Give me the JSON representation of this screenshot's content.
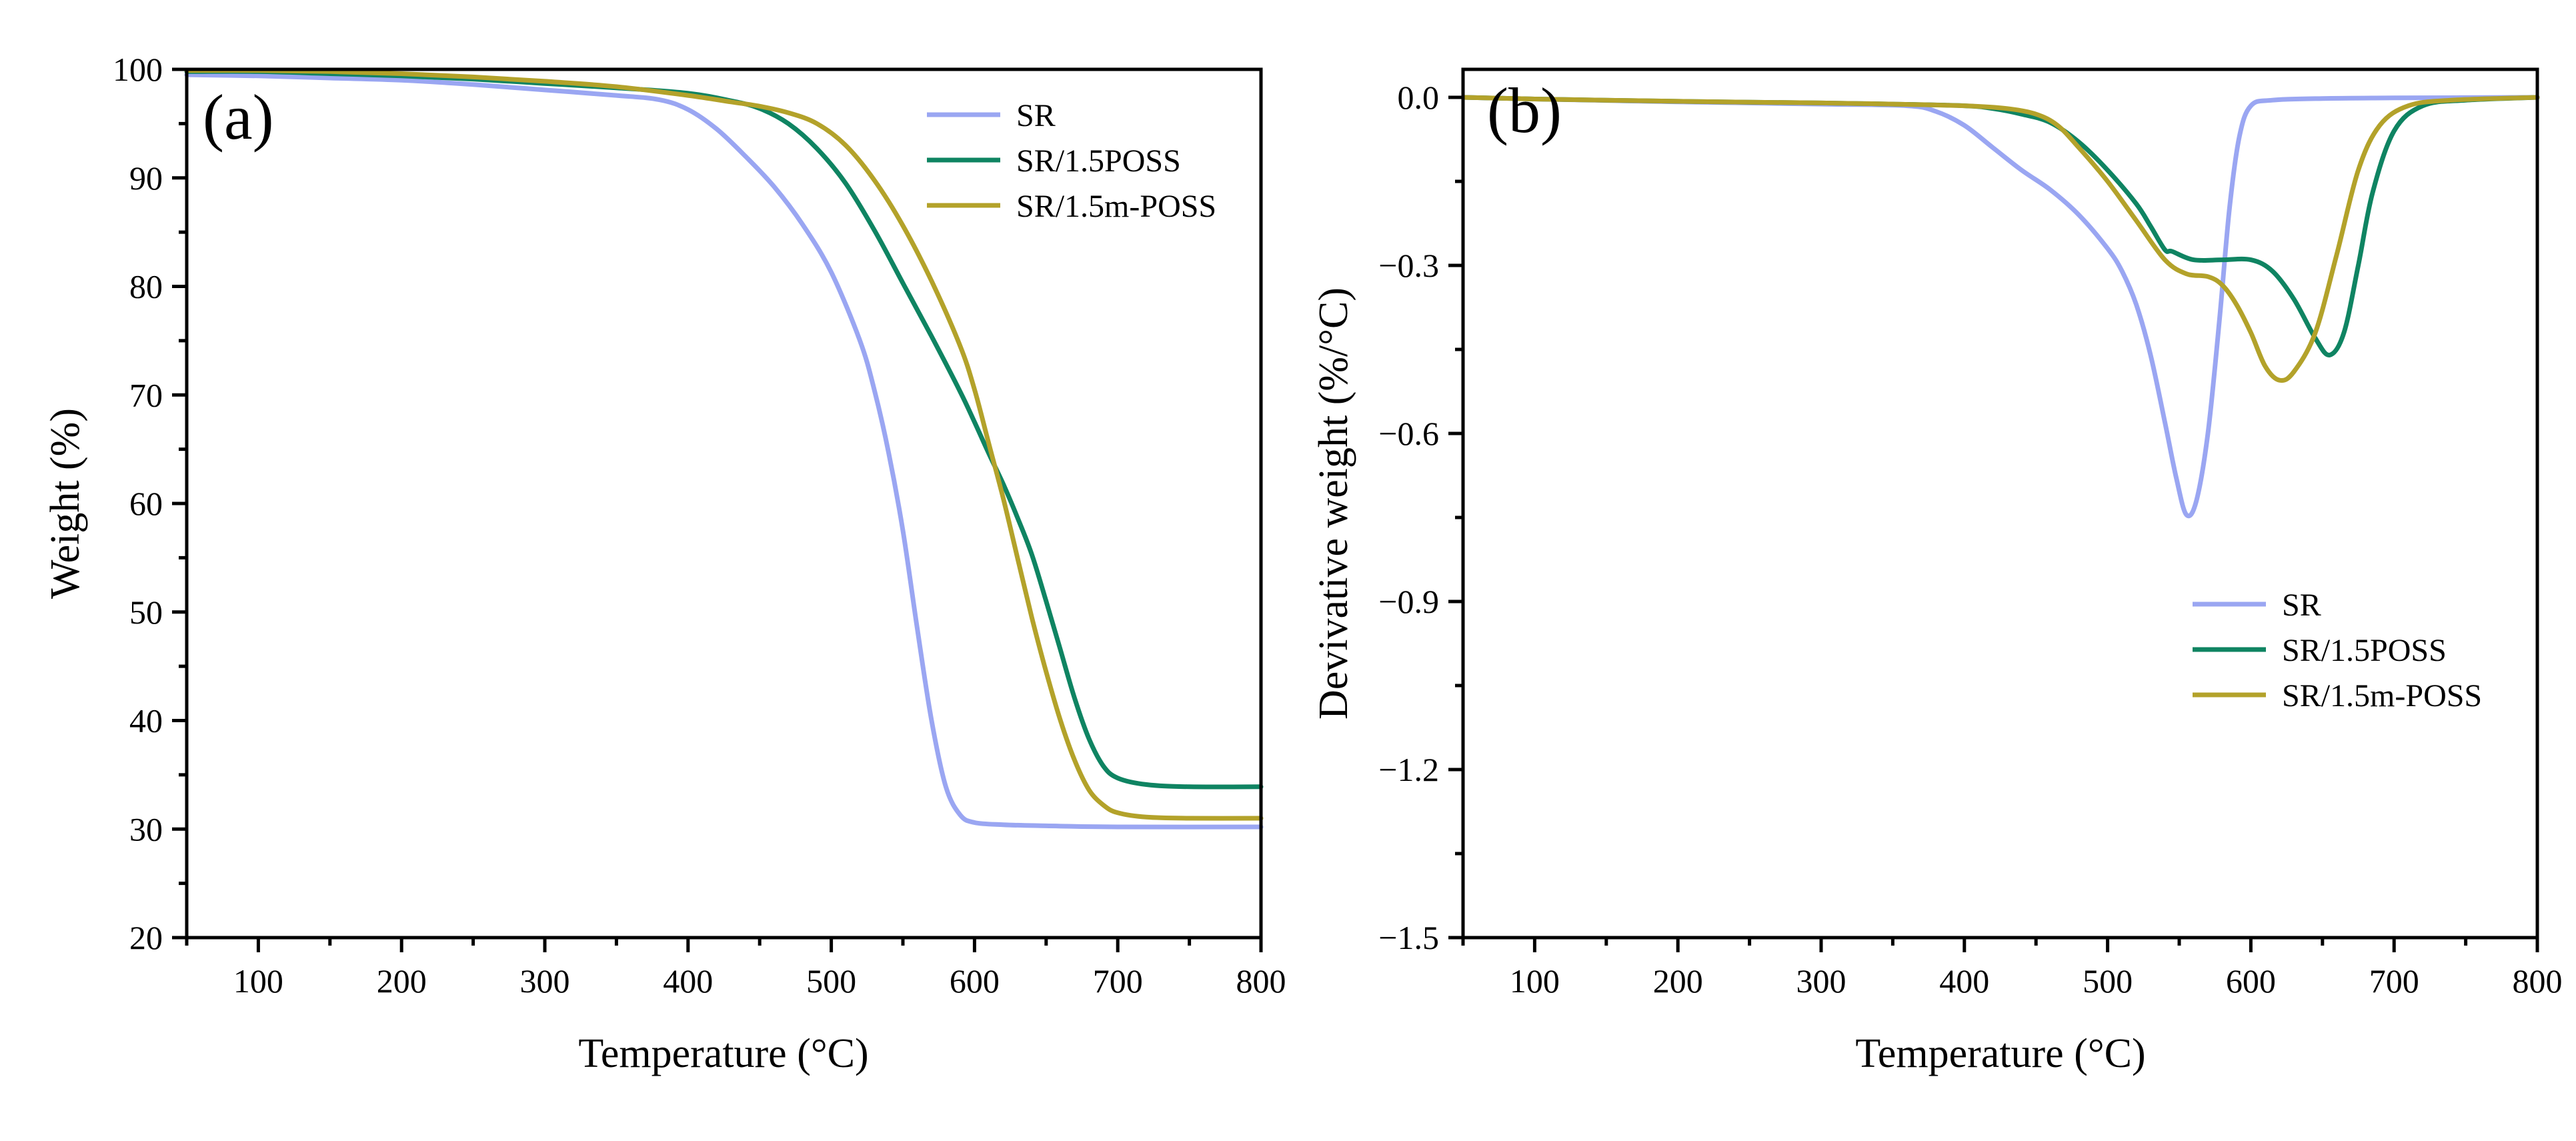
{
  "chart_data": [
    {
      "type": "line",
      "panel_label": "(a)",
      "title": "",
      "xlabel": "Temperature (°C)",
      "ylabel": "Weight (%)",
      "xlim": [
        50,
        800
      ],
      "ylim": [
        20,
        100
      ],
      "x_ticks": [
        100,
        200,
        300,
        400,
        500,
        600,
        700,
        800
      ],
      "y_ticks": [
        20,
        30,
        40,
        50,
        60,
        70,
        80,
        90,
        100
      ],
      "grid": false,
      "legend_position": "top-right",
      "series": [
        {
          "name": "SR",
          "color": "#9aa6f2",
          "points": [
            [
              50,
              99.5
            ],
            [
              100,
              99.4
            ],
            [
              150,
              99.2
            ],
            [
              200,
              99.0
            ],
            [
              250,
              98.6
            ],
            [
              300,
              98.1
            ],
            [
              350,
              97.6
            ],
            [
              380,
              97.2
            ],
            [
              400,
              96.3
            ],
            [
              420,
              94.5
            ],
            [
              440,
              92.0
            ],
            [
              460,
              89.2
            ],
            [
              480,
              85.7
            ],
            [
              500,
              81.3
            ],
            [
              520,
              75.0
            ],
            [
              530,
              70.5
            ],
            [
              540,
              64.7
            ],
            [
              550,
              57.5
            ],
            [
              560,
              48.5
            ],
            [
              570,
              40.0
            ],
            [
              580,
              33.9
            ],
            [
              590,
              31.3
            ],
            [
              600,
              30.6
            ],
            [
              620,
              30.4
            ],
            [
              650,
              30.3
            ],
            [
              700,
              30.2
            ],
            [
              800,
              30.2
            ]
          ]
        },
        {
          "name": "SR/1.5POSS",
          "color": "#0f8462",
          "points": [
            [
              50,
              99.8
            ],
            [
              100,
              99.8
            ],
            [
              150,
              99.6
            ],
            [
              200,
              99.4
            ],
            [
              250,
              99.1
            ],
            [
              300,
              98.7
            ],
            [
              350,
              98.3
            ],
            [
              400,
              97.8
            ],
            [
              430,
              97.1
            ],
            [
              450,
              96.4
            ],
            [
              470,
              95.0
            ],
            [
              490,
              92.7
            ],
            [
              510,
              89.5
            ],
            [
              530,
              85.2
            ],
            [
              550,
              80.3
            ],
            [
              570,
              75.4
            ],
            [
              590,
              70.3
            ],
            [
              600,
              67.5
            ],
            [
              610,
              64.6
            ],
            [
              620,
              61.8
            ],
            [
              630,
              58.7
            ],
            [
              640,
              55.3
            ],
            [
              650,
              51.0
            ],
            [
              660,
              46.5
            ],
            [
              670,
              42.0
            ],
            [
              680,
              38.3
            ],
            [
              690,
              35.8
            ],
            [
              700,
              34.7
            ],
            [
              720,
              34.1
            ],
            [
              750,
              33.9
            ],
            [
              800,
              33.9
            ]
          ]
        },
        {
          "name": "SR/1.5m-POSS",
          "color": "#b3a22a",
          "points": [
            [
              50,
              99.9
            ],
            [
              100,
              99.9
            ],
            [
              150,
              99.8
            ],
            [
              200,
              99.6
            ],
            [
              250,
              99.3
            ],
            [
              300,
              98.9
            ],
            [
              350,
              98.4
            ],
            [
              400,
              97.6
            ],
            [
              430,
              97.0
            ],
            [
              450,
              96.6
            ],
            [
              470,
              96.0
            ],
            [
              490,
              95.0
            ],
            [
              510,
              93.0
            ],
            [
              530,
              89.8
            ],
            [
              550,
              85.6
            ],
            [
              570,
              80.5
            ],
            [
              590,
              74.5
            ],
            [
              600,
              70.5
            ],
            [
              610,
              65.5
            ],
            [
              620,
              60.5
            ],
            [
              630,
              55.0
            ],
            [
              640,
              49.5
            ],
            [
              650,
              44.5
            ],
            [
              660,
              40.0
            ],
            [
              670,
              36.3
            ],
            [
              680,
              33.6
            ],
            [
              690,
              32.2
            ],
            [
              700,
              31.5
            ],
            [
              720,
              31.1
            ],
            [
              750,
              31.0
            ],
            [
              800,
              31.0
            ]
          ]
        }
      ]
    },
    {
      "type": "line",
      "panel_label": "(b)",
      "title": "",
      "xlabel": "Temperature (°C)",
      "ylabel": "Devivative weight (%/°C)",
      "xlim": [
        50,
        800
      ],
      "ylim": [
        -1.5,
        0.05
      ],
      "x_ticks": [
        100,
        200,
        300,
        400,
        500,
        600,
        700,
        800
      ],
      "y_ticks": [
        0.0,
        -0.3,
        -0.6,
        -0.9,
        -1.2,
        -1.5
      ],
      "y_tick_labels": [
        "0.0",
        "−0.3",
        "−0.6",
        "−0.9",
        "−1.2",
        "−1.5"
      ],
      "grid": false,
      "legend_position": "lower-right",
      "series": [
        {
          "name": "SR",
          "color": "#9aa6f2",
          "points": [
            [
              50,
              0.0
            ],
            [
              100,
              -0.003
            ],
            [
              200,
              -0.008
            ],
            [
              300,
              -0.012
            ],
            [
              360,
              -0.015
            ],
            [
              380,
              -0.025
            ],
            [
              400,
              -0.05
            ],
            [
              420,
              -0.09
            ],
            [
              440,
              -0.13
            ],
            [
              460,
              -0.165
            ],
            [
              480,
              -0.21
            ],
            [
              500,
              -0.27
            ],
            [
              510,
              -0.31
            ],
            [
              520,
              -0.37
            ],
            [
              530,
              -0.46
            ],
            [
              540,
              -0.58
            ],
            [
              548,
              -0.68
            ],
            [
              555,
              -0.745
            ],
            [
              562,
              -0.72
            ],
            [
              570,
              -0.6
            ],
            [
              578,
              -0.4
            ],
            [
              585,
              -0.2
            ],
            [
              592,
              -0.07
            ],
            [
              600,
              -0.015
            ],
            [
              615,
              -0.005
            ],
            [
              650,
              -0.002
            ],
            [
              700,
              -0.001
            ],
            [
              800,
              0.0
            ]
          ]
        },
        {
          "name": "SR/1.5POSS",
          "color": "#0f8462",
          "points": [
            [
              50,
              0.0
            ],
            [
              100,
              -0.003
            ],
            [
              200,
              -0.007
            ],
            [
              300,
              -0.01
            ],
            [
              350,
              -0.012
            ],
            [
              400,
              -0.015
            ],
            [
              420,
              -0.02
            ],
            [
              440,
              -0.03
            ],
            [
              460,
              -0.045
            ],
            [
              480,
              -0.08
            ],
            [
              500,
              -0.13
            ],
            [
              520,
              -0.19
            ],
            [
              530,
              -0.23
            ],
            [
              540,
              -0.272
            ],
            [
              545,
              -0.275
            ],
            [
              560,
              -0.29
            ],
            [
              580,
              -0.29
            ],
            [
              600,
              -0.29
            ],
            [
              615,
              -0.31
            ],
            [
              630,
              -0.36
            ],
            [
              645,
              -0.43
            ],
            [
              655,
              -0.46
            ],
            [
              665,
              -0.42
            ],
            [
              675,
              -0.3
            ],
            [
              685,
              -0.17
            ],
            [
              700,
              -0.06
            ],
            [
              720,
              -0.015
            ],
            [
              750,
              -0.005
            ],
            [
              800,
              0.0
            ]
          ]
        },
        {
          "name": "SR/1.5m-POSS",
          "color": "#b3a22a",
          "points": [
            [
              50,
              0.0
            ],
            [
              100,
              -0.003
            ],
            [
              200,
              -0.007
            ],
            [
              300,
              -0.01
            ],
            [
              350,
              -0.012
            ],
            [
              400,
              -0.015
            ],
            [
              430,
              -0.02
            ],
            [
              450,
              -0.03
            ],
            [
              465,
              -0.05
            ],
            [
              480,
              -0.09
            ],
            [
              500,
              -0.15
            ],
            [
              520,
              -0.22
            ],
            [
              540,
              -0.29
            ],
            [
              555,
              -0.315
            ],
            [
              570,
              -0.32
            ],
            [
              580,
              -0.335
            ],
            [
              590,
              -0.37
            ],
            [
              600,
              -0.42
            ],
            [
              610,
              -0.48
            ],
            [
              620,
              -0.505
            ],
            [
              630,
              -0.49
            ],
            [
              645,
              -0.42
            ],
            [
              660,
              -0.28
            ],
            [
              675,
              -0.13
            ],
            [
              690,
              -0.05
            ],
            [
              710,
              -0.015
            ],
            [
              740,
              -0.005
            ],
            [
              800,
              0.0
            ]
          ]
        }
      ]
    }
  ]
}
